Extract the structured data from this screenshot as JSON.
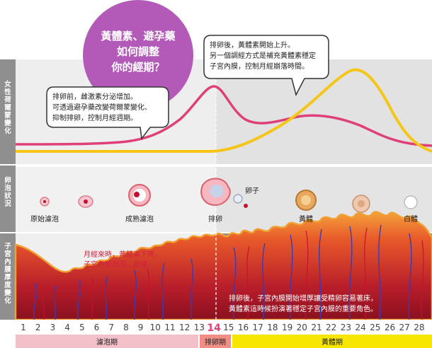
{
  "side_labels": {
    "hormone": "女性荷爾蒙變化",
    "follicle": "卵泡狀況",
    "endometrium": "子宮內膜厚度變化"
  },
  "headline_bubble": [
    "黃體素、避孕藥",
    "如何調整",
    "你的經期？"
  ],
  "callout_left": [
    "排卵前，雌激素分泌增加。",
    "可透過避孕藥改變荷爾蒙變化、",
    "抑制排卵，控制月經週期。"
  ],
  "callout_right": [
    "排卵後，黃體素開始上升。",
    "另一個調經方式是補充黃體素穩定",
    "子宮內膜，控制月經崩落時間。"
  ],
  "follicle_labels": {
    "primordial": "原始濾泡",
    "mature": "成熟濾泡",
    "ovulation": "排卵",
    "egg": "卵子",
    "corpus_luteum": "黃體",
    "corpus_albicans": "白體"
  },
  "menses_note": [
    "月經來時，黃體素下降，",
    "子宮內膜剝落、變薄。"
  ],
  "luteal_note": [
    "排卵後，子宮內膜開始增厚讓受精卵容易著床，",
    "黃體素這時候扮演著穩定子宮內膜的重要角色。"
  ],
  "days": [
    "1",
    "2",
    "3",
    "4",
    "5",
    "6",
    "7",
    "8",
    "9",
    "10",
    "11",
    "12",
    "13",
    "14",
    "15",
    "16",
    "17",
    "18",
    "19",
    "20",
    "21",
    "22",
    "23",
    "24",
    "25",
    "26",
    "27",
    "28"
  ],
  "highlight_day": "14",
  "phases": {
    "follicular": "濾泡期",
    "ovulation": "排卵期",
    "luteal": "黃體期"
  },
  "colors": {
    "estrogen": "#e0407a",
    "progesterone": "#f5c518",
    "bubble_purple": "#b35ab8",
    "luteal_bg": "#8d8d8d",
    "follicular_bar": "#f3bfc8",
    "ovulation_bar": "#f08d86",
    "luteal_bar": "#f7e600",
    "day_highlight": "#e0407a"
  }
}
